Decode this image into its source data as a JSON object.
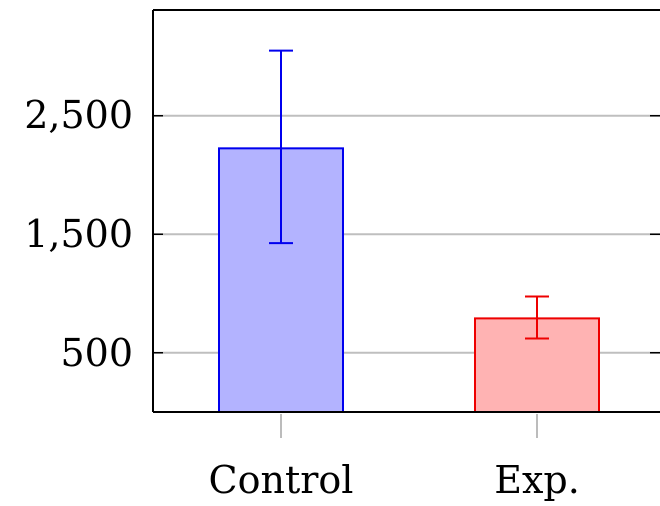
{
  "chart_data": {
    "type": "bar",
    "categories": [
      "Control",
      "Exp."
    ],
    "values": [
      2225,
      790
    ],
    "errors": [
      {
        "low": 1425,
        "high": 3050
      },
      {
        "low": 620,
        "high": 975
      }
    ],
    "colors": {
      "fill": [
        "#b3b3ff",
        "#ffb3b3"
      ],
      "stroke": [
        "#0000ee",
        "#ee0000"
      ],
      "grid": "#bfbfbf",
      "axis": "#000000"
    },
    "yticks": [
      500,
      1500,
      2500
    ],
    "ytick_labels": [
      "500",
      "1,500",
      "2,500"
    ],
    "ylim": [
      0,
      3350
    ],
    "grid": "horizontal",
    "title": "",
    "xlabel": "",
    "ylabel": ""
  }
}
